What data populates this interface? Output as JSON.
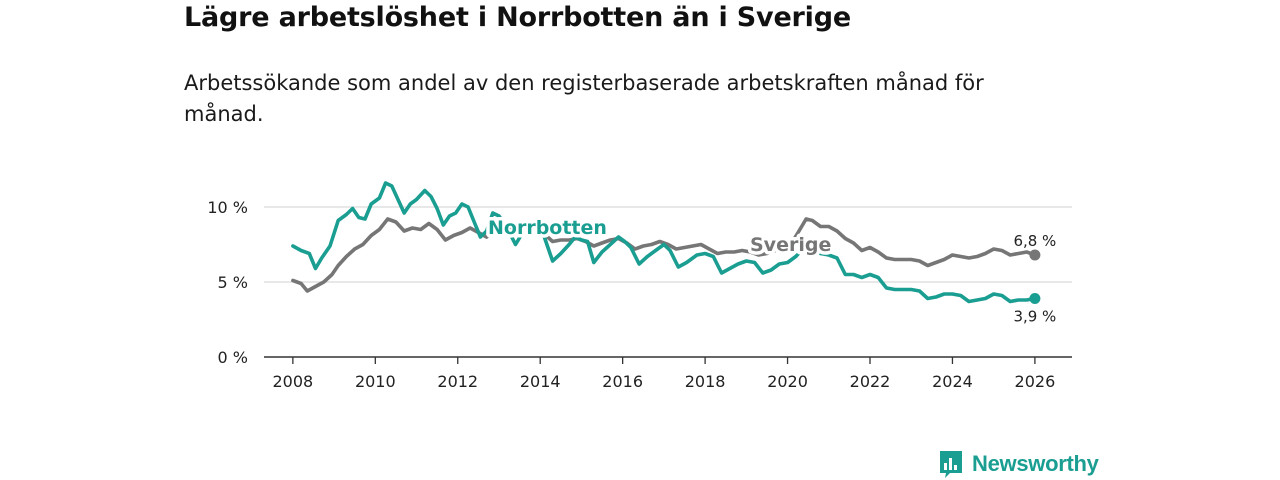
{
  "title": "Lägre arbetslöshet i Norrbotten än i Sverige",
  "subtitle": "Arbetssökande som andel av den registerbaserade arbetskraften månad för månad.",
  "brand": "Newsworthy",
  "colors": {
    "norrbotten": "#1b9e92",
    "sverige": "#767676",
    "grid": "#d9d9d9",
    "axis": "#333333"
  },
  "chart_data": {
    "type": "line",
    "title": "Lägre arbetslöshet i Norrbotten än i Sverige",
    "subtitle": "Arbetssökande som andel av den registerbaserade arbetskraften månad för månad.",
    "xlabel": "",
    "ylabel": "",
    "xlim": [
      2007.3,
      2026.9
    ],
    "ylim": [
      0,
      10
    ],
    "y_ticks": [
      0,
      5,
      10
    ],
    "y_tick_labels": [
      "0 %",
      "5 %",
      "10 %"
    ],
    "x_ticks": [
      2008,
      2010,
      2012,
      2014,
      2016,
      2018,
      2020,
      2022,
      2024,
      2026
    ],
    "x_tick_labels": [
      "2008",
      "2010",
      "2012",
      "2014",
      "2016",
      "2018",
      "2020",
      "2022",
      "2024",
      "2026"
    ],
    "grid": true,
    "series": [
      {
        "name": "Norrbotten",
        "color": "#1b9e92",
        "end_label": "3,9 %",
        "points": [
          [
            2008.0,
            7.4
          ],
          [
            2008.2,
            7.1
          ],
          [
            2008.4,
            6.9
          ],
          [
            2008.55,
            5.9
          ],
          [
            2008.7,
            6.6
          ],
          [
            2008.9,
            7.4
          ],
          [
            2009.1,
            9.1
          ],
          [
            2009.3,
            9.5
          ],
          [
            2009.45,
            9.9
          ],
          [
            2009.6,
            9.3
          ],
          [
            2009.75,
            9.2
          ],
          [
            2009.9,
            10.2
          ],
          [
            2010.1,
            10.6
          ],
          [
            2010.25,
            11.6
          ],
          [
            2010.4,
            11.4
          ],
          [
            2010.55,
            10.5
          ],
          [
            2010.7,
            9.6
          ],
          [
            2010.85,
            10.2
          ],
          [
            2011.0,
            10.5
          ],
          [
            2011.2,
            11.1
          ],
          [
            2011.35,
            10.7
          ],
          [
            2011.5,
            9.9
          ],
          [
            2011.65,
            8.8
          ],
          [
            2011.8,
            9.4
          ],
          [
            2011.95,
            9.6
          ],
          [
            2012.1,
            10.2
          ],
          [
            2012.25,
            10.0
          ],
          [
            2012.4,
            9.0
          ],
          [
            2012.55,
            8.0
          ],
          [
            2012.7,
            8.4
          ],
          [
            2012.85,
            9.6
          ],
          [
            2013.0,
            9.4
          ],
          [
            2013.2,
            8.6
          ],
          [
            2013.4,
            7.5
          ],
          [
            2013.6,
            8.4
          ],
          [
            2013.75,
            8.9
          ],
          [
            2013.9,
            8.6
          ],
          [
            2014.1,
            8.0
          ],
          [
            2014.3,
            6.4
          ],
          [
            2014.5,
            6.9
          ],
          [
            2014.7,
            7.5
          ],
          [
            2014.85,
            8.0
          ],
          [
            2015.0,
            7.8
          ],
          [
            2015.15,
            7.7
          ],
          [
            2015.3,
            6.3
          ],
          [
            2015.5,
            7.0
          ],
          [
            2015.7,
            7.5
          ],
          [
            2015.9,
            8.0
          ],
          [
            2016.05,
            7.7
          ],
          [
            2016.2,
            7.3
          ],
          [
            2016.4,
            6.2
          ],
          [
            2016.6,
            6.7
          ],
          [
            2016.8,
            7.1
          ],
          [
            2017.0,
            7.5
          ],
          [
            2017.15,
            7.1
          ],
          [
            2017.35,
            6.0
          ],
          [
            2017.55,
            6.3
          ],
          [
            2017.8,
            6.8
          ],
          [
            2018.0,
            6.9
          ],
          [
            2018.2,
            6.7
          ],
          [
            2018.4,
            5.6
          ],
          [
            2018.6,
            5.9
          ],
          [
            2018.8,
            6.2
          ],
          [
            2019.0,
            6.4
          ],
          [
            2019.2,
            6.3
          ],
          [
            2019.4,
            5.6
          ],
          [
            2019.6,
            5.8
          ],
          [
            2019.8,
            6.2
          ],
          [
            2020.0,
            6.3
          ],
          [
            2020.2,
            6.7
          ],
          [
            2020.4,
            7.3
          ],
          [
            2020.6,
            7.2
          ],
          [
            2020.8,
            6.9
          ],
          [
            2021.0,
            6.8
          ],
          [
            2021.2,
            6.6
          ],
          [
            2021.4,
            5.5
          ],
          [
            2021.6,
            5.5
          ],
          [
            2021.8,
            5.3
          ],
          [
            2022.0,
            5.5
          ],
          [
            2022.2,
            5.3
          ],
          [
            2022.4,
            4.6
          ],
          [
            2022.6,
            4.5
          ],
          [
            2022.8,
            4.5
          ],
          [
            2023.0,
            4.5
          ],
          [
            2023.2,
            4.4
          ],
          [
            2023.4,
            3.9
          ],
          [
            2023.6,
            4.0
          ],
          [
            2023.8,
            4.2
          ],
          [
            2024.0,
            4.2
          ],
          [
            2024.2,
            4.1
          ],
          [
            2024.4,
            3.7
          ],
          [
            2024.6,
            3.8
          ],
          [
            2024.8,
            3.9
          ],
          [
            2025.0,
            4.2
          ],
          [
            2025.2,
            4.1
          ],
          [
            2025.4,
            3.7
          ],
          [
            2025.6,
            3.8
          ],
          [
            2025.8,
            3.8
          ],
          [
            2026.0,
            3.9
          ]
        ]
      },
      {
        "name": "Sverige",
        "color": "#767676",
        "end_label": "6,8 %",
        "points": [
          [
            2008.0,
            5.1
          ],
          [
            2008.2,
            4.9
          ],
          [
            2008.35,
            4.4
          ],
          [
            2008.55,
            4.7
          ],
          [
            2008.75,
            5.0
          ],
          [
            2008.95,
            5.5
          ],
          [
            2009.1,
            6.1
          ],
          [
            2009.3,
            6.7
          ],
          [
            2009.5,
            7.2
          ],
          [
            2009.7,
            7.5
          ],
          [
            2009.9,
            8.1
          ],
          [
            2010.1,
            8.5
          ],
          [
            2010.3,
            9.2
          ],
          [
            2010.5,
            9.0
          ],
          [
            2010.7,
            8.4
          ],
          [
            2010.9,
            8.6
          ],
          [
            2011.1,
            8.5
          ],
          [
            2011.3,
            8.9
          ],
          [
            2011.5,
            8.5
          ],
          [
            2011.7,
            7.8
          ],
          [
            2011.9,
            8.1
          ],
          [
            2012.1,
            8.3
          ],
          [
            2012.3,
            8.6
          ],
          [
            2012.5,
            8.3
          ],
          [
            2012.7,
            8.0
          ],
          [
            2012.9,
            8.5
          ],
          [
            2013.1,
            8.7
          ],
          [
            2013.3,
            8.4
          ],
          [
            2013.5,
            8.1
          ],
          [
            2013.7,
            8.3
          ],
          [
            2013.9,
            8.5
          ],
          [
            2014.1,
            8.2
          ],
          [
            2014.3,
            7.7
          ],
          [
            2014.5,
            7.8
          ],
          [
            2014.7,
            7.8
          ],
          [
            2014.9,
            7.9
          ],
          [
            2015.1,
            7.7
          ],
          [
            2015.3,
            7.4
          ],
          [
            2015.5,
            7.6
          ],
          [
            2015.7,
            7.8
          ],
          [
            2015.9,
            7.9
          ],
          [
            2016.1,
            7.6
          ],
          [
            2016.3,
            7.2
          ],
          [
            2016.5,
            7.4
          ],
          [
            2016.7,
            7.5
          ],
          [
            2016.9,
            7.7
          ],
          [
            2017.1,
            7.5
          ],
          [
            2017.3,
            7.2
          ],
          [
            2017.5,
            7.3
          ],
          [
            2017.7,
            7.4
          ],
          [
            2017.9,
            7.5
          ],
          [
            2018.1,
            7.2
          ],
          [
            2018.3,
            6.9
          ],
          [
            2018.5,
            7.0
          ],
          [
            2018.7,
            7.0
          ],
          [
            2018.9,
            7.1
          ],
          [
            2019.1,
            7.0
          ],
          [
            2019.3,
            6.8
          ],
          [
            2019.5,
            6.9
          ],
          [
            2019.7,
            7.1
          ],
          [
            2019.9,
            7.3
          ],
          [
            2020.1,
            7.6
          ],
          [
            2020.3,
            8.5
          ],
          [
            2020.45,
            9.2
          ],
          [
            2020.6,
            9.1
          ],
          [
            2020.8,
            8.7
          ],
          [
            2021.0,
            8.7
          ],
          [
            2021.2,
            8.4
          ],
          [
            2021.4,
            7.9
          ],
          [
            2021.6,
            7.6
          ],
          [
            2021.8,
            7.1
          ],
          [
            2022.0,
            7.3
          ],
          [
            2022.2,
            7.0
          ],
          [
            2022.4,
            6.6
          ],
          [
            2022.6,
            6.5
          ],
          [
            2022.8,
            6.5
          ],
          [
            2023.0,
            6.5
          ],
          [
            2023.2,
            6.4
          ],
          [
            2023.4,
            6.1
          ],
          [
            2023.6,
            6.3
          ],
          [
            2023.8,
            6.5
          ],
          [
            2024.0,
            6.8
          ],
          [
            2024.2,
            6.7
          ],
          [
            2024.4,
            6.6
          ],
          [
            2024.6,
            6.7
          ],
          [
            2024.8,
            6.9
          ],
          [
            2025.0,
            7.2
          ],
          [
            2025.2,
            7.1
          ],
          [
            2025.4,
            6.8
          ],
          [
            2025.6,
            6.9
          ],
          [
            2025.8,
            7.0
          ],
          [
            2026.0,
            6.8
          ]
        ]
      }
    ]
  }
}
